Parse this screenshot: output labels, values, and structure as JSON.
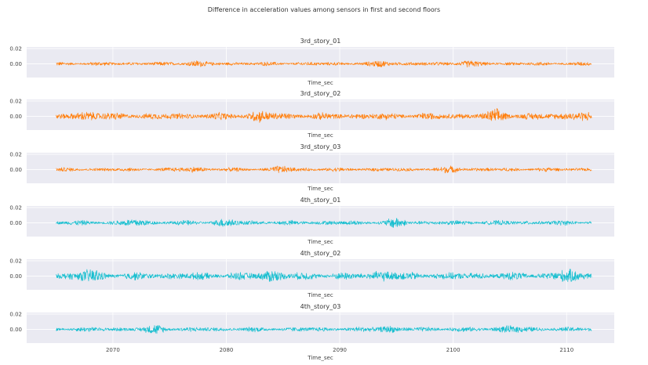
{
  "chart_data": {
    "type": "line",
    "title": "Difference in acceleration values among sensors in first and second floors",
    "xlabel": "Time_sec",
    "x_ticks": [
      2070,
      2080,
      2090,
      2100,
      2110
    ],
    "xlim": [
      2062.4,
      2114.2
    ],
    "x_range": [
      2065,
      2112.2
    ],
    "ylim": [
      -0.018,
      0.022
    ],
    "y_ticks": [
      "0.00",
      "0.02"
    ],
    "y_tick_values": [
      0.0,
      0.02
    ],
    "grid": true,
    "background": "#eaeaf2",
    "subplots": [
      {
        "name": "3rd_story_01",
        "color": "#ff7f0e",
        "amplitude": 0.0028,
        "bursts": [
          2077,
          2094,
          2101
        ]
      },
      {
        "name": "3rd_story_02",
        "color": "#ff7f0e",
        "amplitude": 0.005,
        "bursts": [
          2068,
          2083,
          2104,
          2111
        ]
      },
      {
        "name": "3rd_story_03",
        "color": "#ff7f0e",
        "amplitude": 0.0028,
        "bursts": [
          2077,
          2085,
          2100
        ]
      },
      {
        "name": "4th_story_01",
        "color": "#17becf",
        "amplitude": 0.0035,
        "bursts": [
          2072,
          2080,
          2095
        ]
      },
      {
        "name": "4th_story_02",
        "color": "#17becf",
        "amplitude": 0.0055,
        "bursts": [
          2068,
          2084,
          2094,
          2110
        ]
      },
      {
        "name": "4th_story_03",
        "color": "#17becf",
        "amplitude": 0.0035,
        "bursts": [
          2074,
          2094,
          2105
        ]
      }
    ]
  }
}
